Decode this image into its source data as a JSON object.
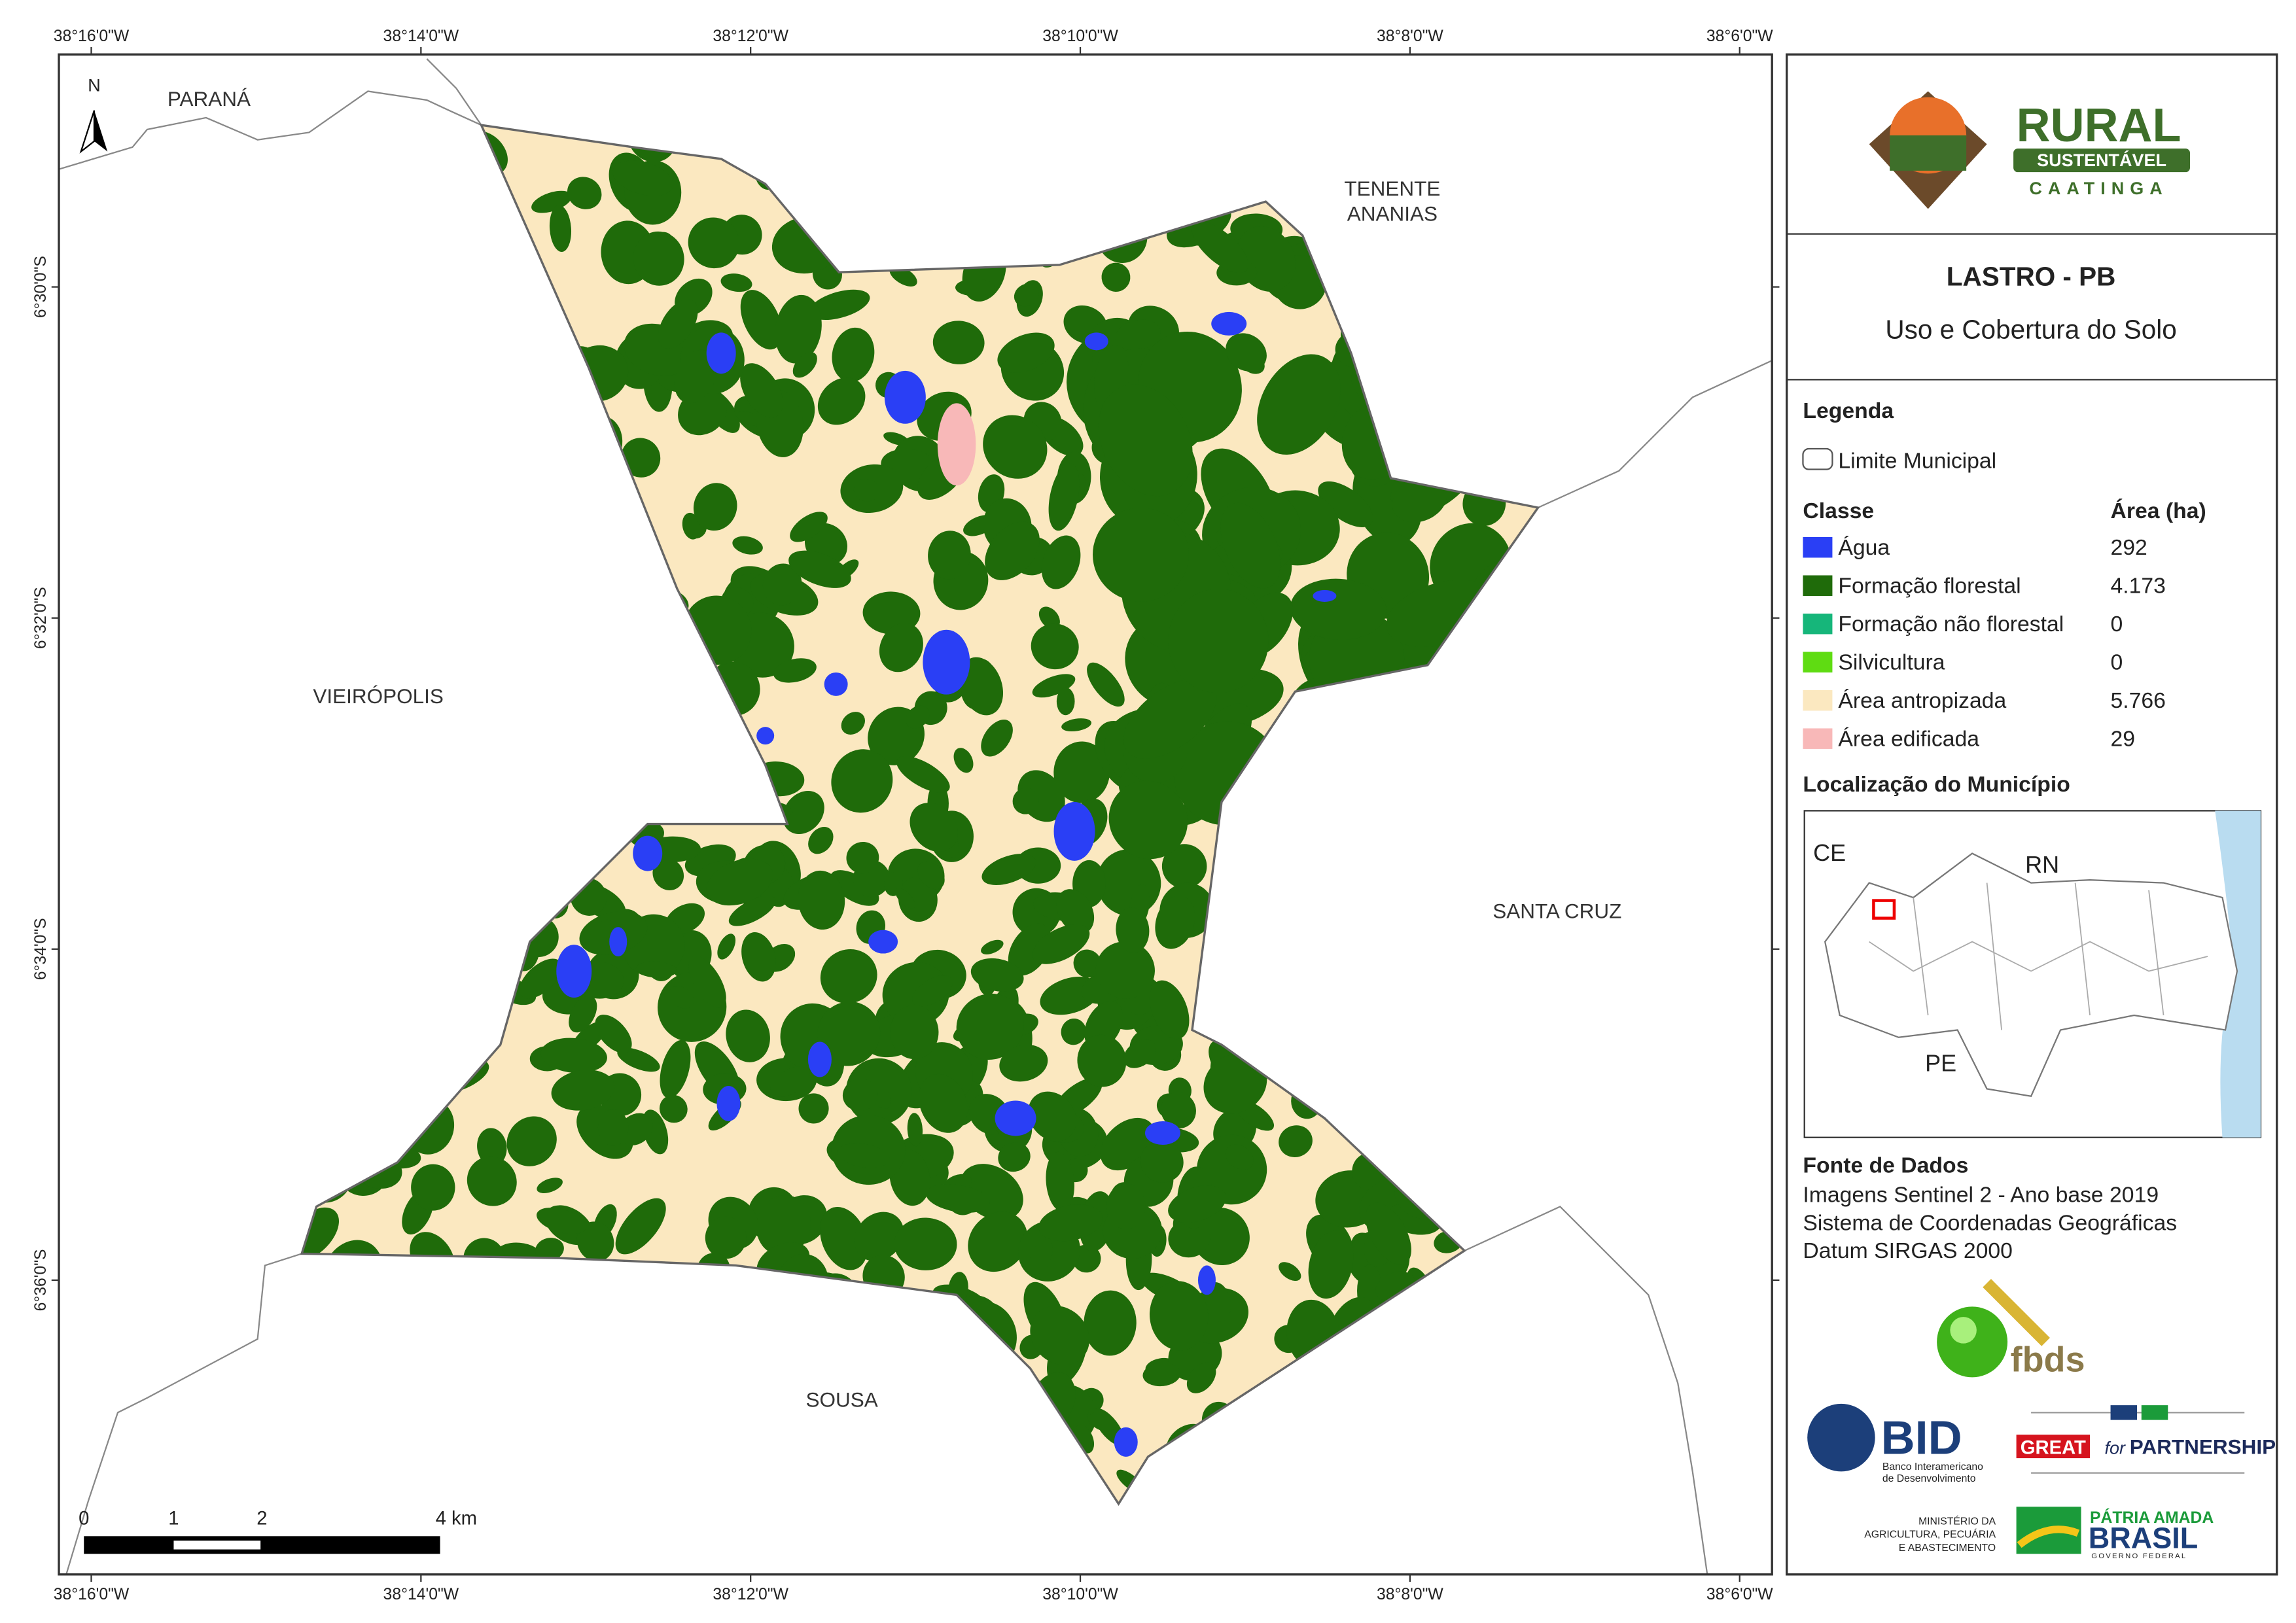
{
  "map": {
    "top_coords": [
      "38°16'0\"W",
      "38°14'0\"W",
      "38°12'0\"W",
      "38°10'0\"W",
      "38°8'0\"W",
      "38°6'0\"W"
    ],
    "bottom_coords": [
      "38°16'0\"W",
      "38°14'0\"W",
      "38°12'0\"W",
      "38°10'0\"W",
      "38°8'0\"W",
      "38°6'0\"W"
    ],
    "left_coords": [
      "6°30'0\"S",
      "6°32'0\"S",
      "6°34'0\"S",
      "6°36'0\"S"
    ],
    "north": "N",
    "places": [
      {
        "lines": [
          "PARANÁ"
        ]
      },
      {
        "lines": [
          "TENENTE",
          "ANANIAS"
        ]
      },
      {
        "lines": [
          "VIEIRÓPOLIS"
        ]
      },
      {
        "lines": [
          "SANTA CRUZ"
        ]
      },
      {
        "lines": [
          "SOUSA"
        ]
      }
    ],
    "scale_labels": [
      "0",
      "1",
      "2",
      "4 km"
    ]
  },
  "panel": {
    "logo": {
      "title": "RURAL",
      "subtitle": "SUSTENTÁVEL",
      "region": "CAATINGA"
    },
    "title": "LASTRO - PB",
    "subtitle": "Uso e Cobertura do Solo",
    "legend": {
      "heading": "Legenda",
      "boundary": "Limite Municipal",
      "class_header": "Classe",
      "area_header": "Área (ha)",
      "classes": [
        {
          "name": "Água",
          "area": "292",
          "color": "#2a3ff5"
        },
        {
          "name": "Formação florestal",
          "area": "4.173",
          "color": "#1f6b0a"
        },
        {
          "name": "Formação não florestal",
          "area": "0",
          "color": "#16b67a"
        },
        {
          "name": "Silvicultura",
          "area": "0",
          "color": "#5fdc12"
        },
        {
          "name": "Área antropizada",
          "area": "5.766",
          "color": "#fbe8c0"
        },
        {
          "name": "Área edificada",
          "area": "29",
          "color": "#f8b8b8"
        }
      ]
    },
    "location": {
      "heading": "Localização do Município",
      "labels": [
        "CE",
        "RN",
        "PE"
      ]
    },
    "source": {
      "heading": "Fonte de Dados",
      "lines": [
        "Imagens Sentinel 2 - Ano base 2019",
        "Sistema de Coordenadas Geográficas",
        "Datum SIRGAS 2000"
      ]
    },
    "partners": {
      "fbds": "fbds",
      "bid": "BID",
      "bid_name": [
        "Banco Interamericano",
        "de Desenvolvimento"
      ],
      "great": "GREAT",
      "great_for": "for",
      "great_partnership": "PARTNERSHIP",
      "ministry": [
        "MINISTÉRIO DA",
        "AGRICULTURA, PECUÁRIA",
        "E ABASTECIMENTO"
      ],
      "brasil_top": "PÁTRIA AMADA",
      "brasil": "BRASIL",
      "brasil_gov": "GOVERNO FEDERAL"
    }
  }
}
